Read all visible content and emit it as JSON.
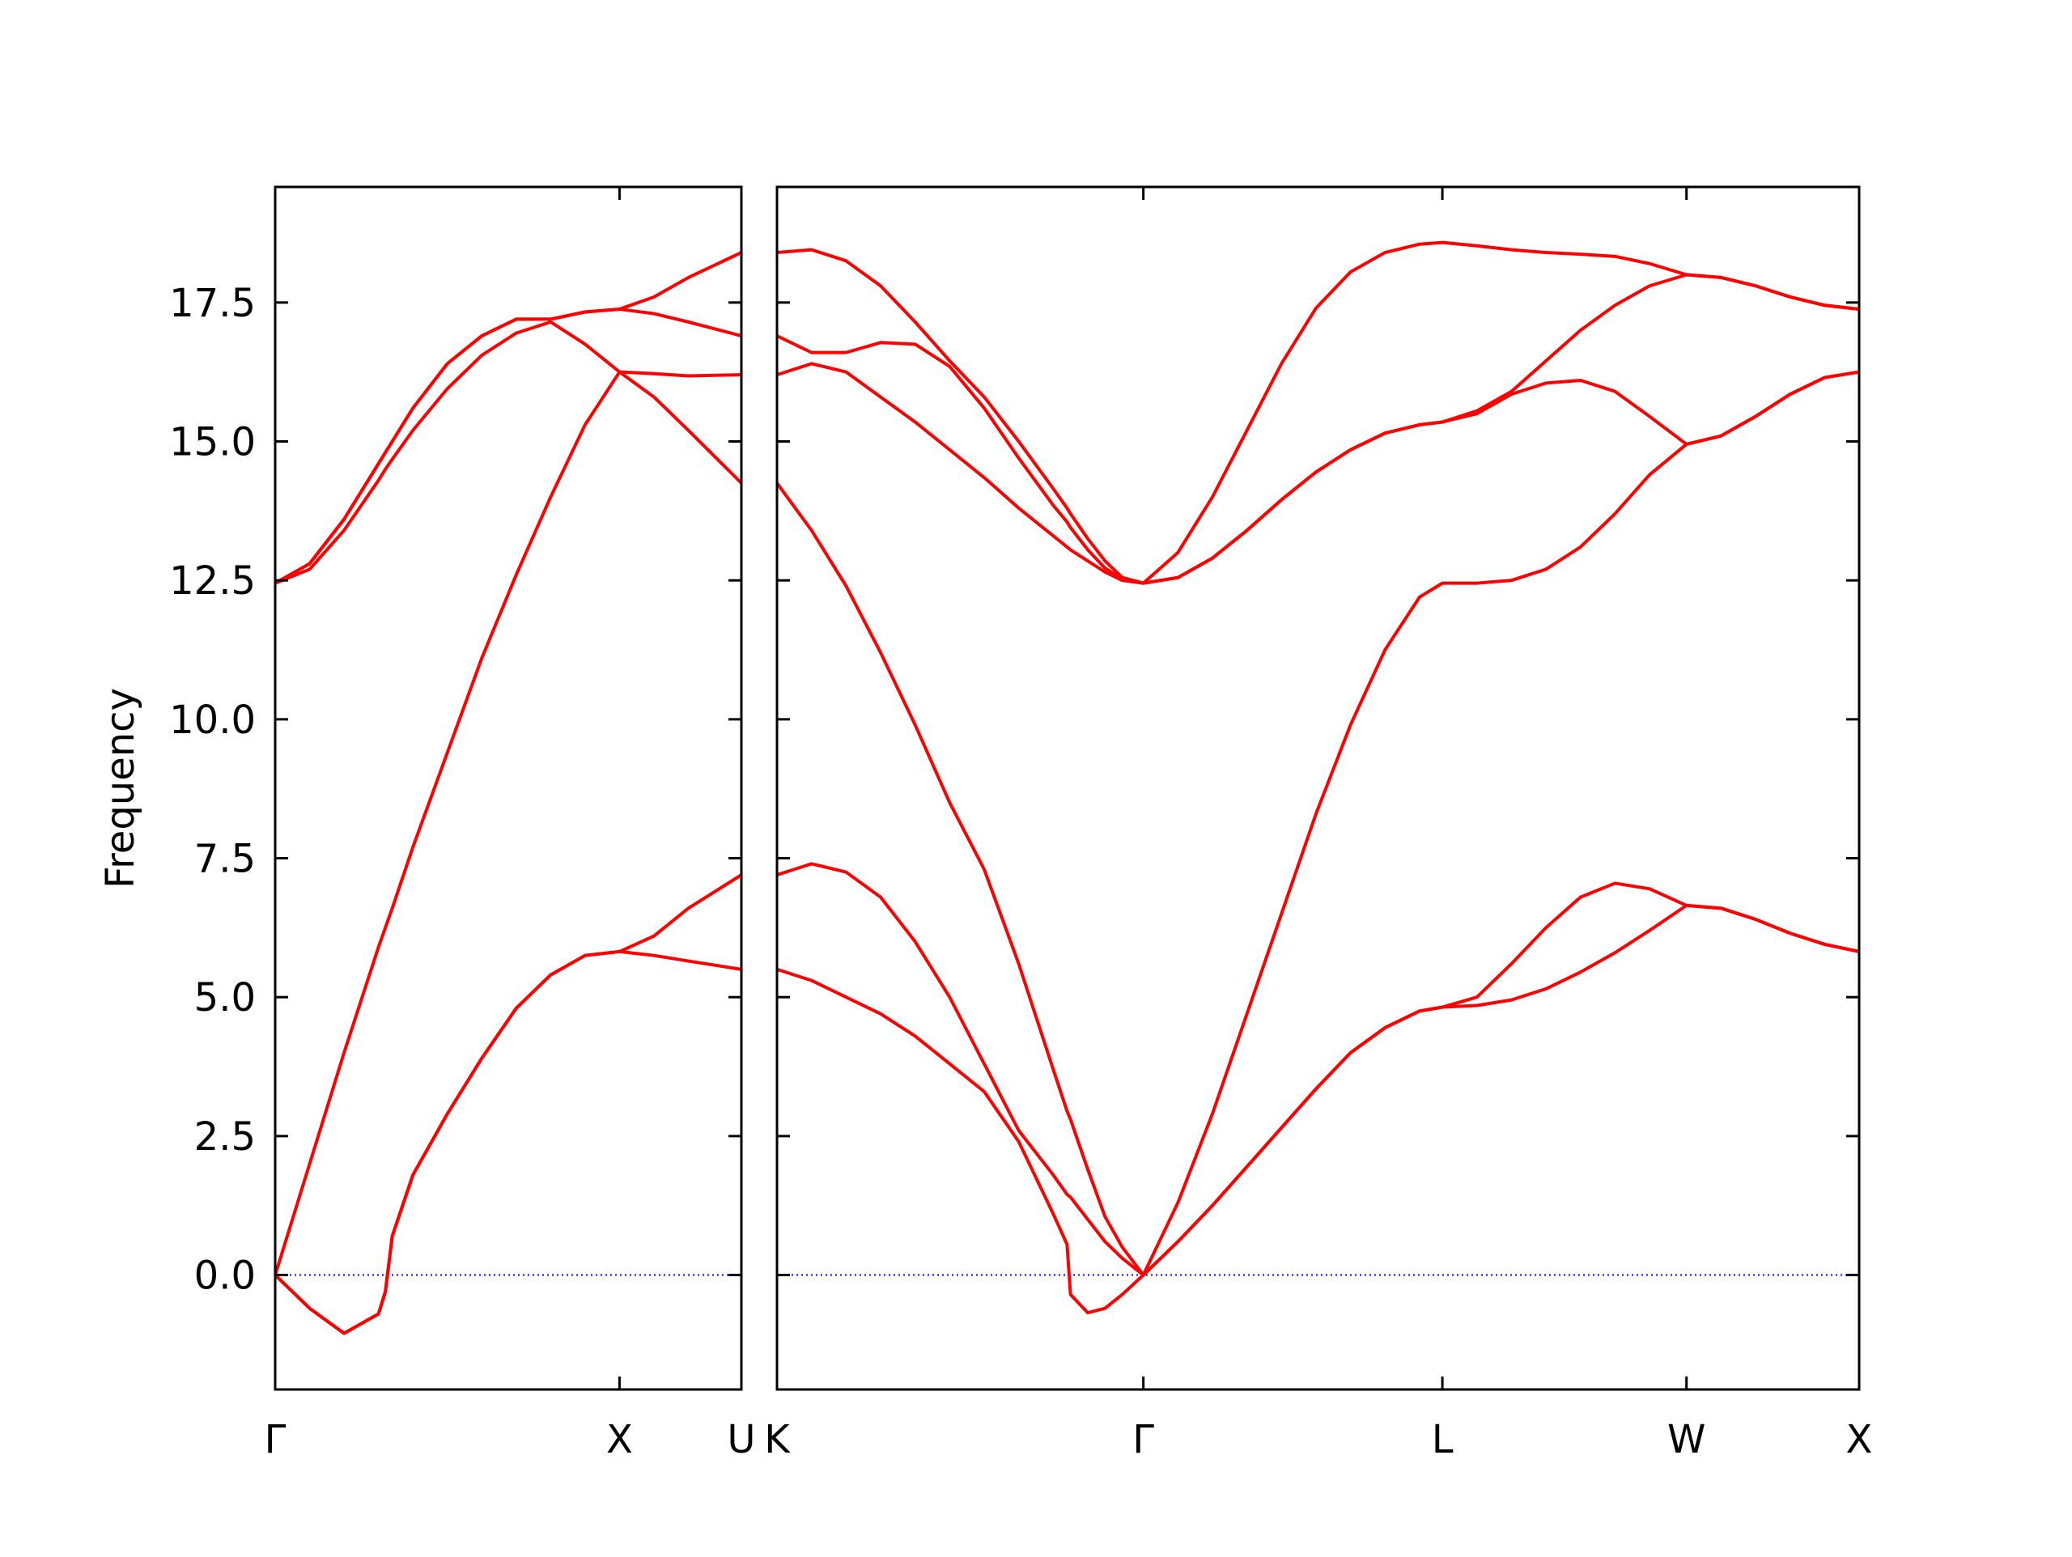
{
  "chart_data": [
    {
      "type": "line",
      "ylabel": "Frequency",
      "color": "#ff0000",
      "hline": 0,
      "hline_color": "#0000ff",
      "ylim": [
        -2.06,
        19.58
      ],
      "yticks": [
        {
          "value": 0,
          "label": "0.0"
        },
        2.5,
        {
          "value": 5,
          "label": "5.0"
        },
        7.5,
        {
          "value": 10,
          "label": "10.0"
        },
        12.5,
        {
          "value": 15,
          "label": "15.0"
        },
        17.5
      ],
      "xlim": [
        0,
        1.354
      ],
      "xticks": [
        {
          "value": 0,
          "label": "Γ"
        },
        {
          "value": 1,
          "label": "X"
        },
        {
          "value": 1.354,
          "label": "U"
        }
      ],
      "x": [
        0,
        0.1,
        0.2,
        0.3,
        0.32,
        0.34,
        0.4,
        0.5,
        0.6,
        0.7,
        0.8,
        0.9,
        1,
        1.1,
        1.2,
        1.354
      ],
      "series": [
        {
          "values": [
            0,
            -0.6,
            -1.05,
            -0.7,
            -0.3,
            0.7,
            1.8,
            2.9,
            3.9,
            4.8,
            5.4,
            5.75,
            5.82,
            5.75,
            5.65,
            5.5
          ]
        },
        {
          "values": [
            0,
            -0.6,
            -1.05,
            -0.7,
            -0.3,
            0.7,
            1.8,
            2.9,
            3.9,
            4.8,
            5.4,
            5.75,
            5.82,
            6.1,
            6.6,
            7.2
          ]
        },
        {
          "values": [
            0,
            2.0,
            4.0,
            5.9,
            6.25,
            6.6,
            7.7,
            9.4,
            11.1,
            12.6,
            14.0,
            15.3,
            16.25,
            15.8,
            15.2,
            14.25
          ]
        },
        {
          "values": [
            12.45,
            12.7,
            13.4,
            14.3,
            14.5,
            14.68,
            15.2,
            15.95,
            16.55,
            16.95,
            17.15,
            16.75,
            16.25,
            16.22,
            16.18,
            16.2
          ]
        },
        {
          "values": [
            12.45,
            12.8,
            13.6,
            14.6,
            14.8,
            15.0,
            15.6,
            16.4,
            16.9,
            17.2,
            17.2,
            17.33,
            17.38,
            17.3,
            17.15,
            16.9
          ]
        },
        {
          "values": [
            12.45,
            12.8,
            13.6,
            14.6,
            14.8,
            15.0,
            15.6,
            16.4,
            16.9,
            17.2,
            17.2,
            17.33,
            17.38,
            17.6,
            17.95,
            18.4
          ]
        }
      ]
    },
    {
      "type": "line",
      "color": "#ff0000",
      "hline": 0,
      "hline_color": "#0000ff",
      "xlim": [
        0,
        3.134
      ],
      "xticks": [
        {
          "value": 0,
          "label": "K"
        },
        {
          "value": 1.061,
          "label": "Γ"
        },
        {
          "value": 1.927,
          "label": "L"
        },
        {
          "value": 2.634,
          "label": "W"
        },
        {
          "value": 3.134,
          "label": "X"
        }
      ],
      "x": [
        0,
        0.1,
        0.2,
        0.3,
        0.4,
        0.5,
        0.6,
        0.7,
        0.8,
        0.84,
        0.85,
        0.9,
        0.95,
        1.0,
        1.061,
        1.161,
        1.261,
        1.361,
        1.461,
        1.561,
        1.661,
        1.761,
        1.861,
        1.927,
        2.027,
        2.127,
        2.227,
        2.327,
        2.427,
        2.527,
        2.634,
        2.734,
        2.834,
        2.934,
        3.034,
        3.134
      ],
      "series": [
        {
          "values": [
            5.5,
            5.3,
            5.0,
            4.7,
            4.3,
            3.8,
            3.3,
            2.4,
            1.1,
            0.55,
            -0.35,
            -0.68,
            -0.6,
            -0.35,
            0,
            0.6,
            1.25,
            1.95,
            2.65,
            3.35,
            4.0,
            4.45,
            4.75,
            4.82,
            4.85,
            4.95,
            5.15,
            5.45,
            5.8,
            6.2,
            6.65,
            6.6,
            6.4,
            6.15,
            5.95,
            5.82
          ]
        },
        {
          "values": [
            7.2,
            7.4,
            7.25,
            6.8,
            6.0,
            5.0,
            3.8,
            2.6,
            1.8,
            1.45,
            1.4,
            1.0,
            0.6,
            0.3,
            0,
            0.6,
            1.25,
            1.95,
            2.65,
            3.35,
            4.0,
            4.45,
            4.75,
            4.82,
            5.0,
            5.6,
            6.25,
            6.8,
            7.05,
            6.95,
            6.65,
            6.6,
            6.4,
            6.15,
            5.95,
            5.82
          ]
        },
        {
          "values": [
            14.25,
            13.4,
            12.4,
            11.2,
            9.9,
            8.5,
            7.3,
            5.6,
            3.7,
            2.95,
            2.8,
            1.9,
            1.05,
            0.5,
            0,
            1.3,
            2.9,
            4.7,
            6.5,
            8.3,
            9.9,
            11.25,
            12.2,
            12.45,
            12.45,
            12.5,
            12.7,
            13.1,
            13.7,
            14.4,
            14.95,
            15.1,
            15.45,
            15.85,
            16.15,
            16.25
          ]
        },
        {
          "values": [
            16.2,
            16.4,
            16.25,
            15.8,
            15.35,
            14.85,
            14.35,
            13.8,
            13.3,
            13.1,
            13.05,
            12.85,
            12.65,
            12.5,
            12.45,
            12.55,
            12.9,
            13.4,
            13.95,
            14.45,
            14.85,
            15.15,
            15.3,
            15.35,
            15.5,
            15.85,
            16.05,
            16.1,
            15.9,
            15.45,
            14.95,
            15.1,
            15.45,
            15.85,
            16.15,
            16.25
          ]
        },
        {
          "values": [
            16.9,
            16.6,
            16.6,
            16.78,
            16.75,
            16.35,
            15.6,
            14.7,
            13.85,
            13.55,
            13.45,
            13.05,
            12.72,
            12.52,
            12.45,
            12.55,
            12.9,
            13.4,
            13.95,
            14.45,
            14.85,
            15.15,
            15.3,
            15.35,
            15.55,
            15.9,
            16.45,
            17.0,
            17.45,
            17.8,
            18.0,
            17.95,
            17.8,
            17.6,
            17.45,
            17.38
          ]
        },
        {
          "values": [
            18.4,
            18.45,
            18.25,
            17.8,
            17.15,
            16.45,
            15.8,
            15.0,
            14.15,
            13.8,
            13.7,
            13.25,
            12.85,
            12.55,
            12.45,
            13.0,
            14.0,
            15.2,
            16.4,
            17.4,
            18.05,
            18.4,
            18.55,
            18.58,
            18.52,
            18.45,
            18.4,
            18.37,
            18.33,
            18.2,
            18.0,
            17.95,
            17.8,
            17.6,
            17.45,
            17.38
          ]
        }
      ]
    }
  ]
}
